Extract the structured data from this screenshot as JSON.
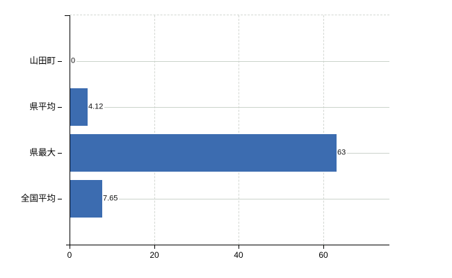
{
  "chart_data": {
    "type": "bar",
    "orientation": "horizontal",
    "title": "",
    "categories": [
      "山田町",
      "県平均",
      "県最大",
      "全国平均"
    ],
    "values": [
      0,
      4.12,
      63,
      7.65
    ],
    "value_labels": [
      "0",
      "4.12",
      "63",
      "7.65"
    ],
    "x_ticks": [
      0,
      20,
      40,
      60
    ],
    "x_tick_labels": [
      "0",
      "20",
      "40",
      "60"
    ],
    "xlim": [
      0,
      75.7
    ],
    "ylabel": "",
    "xlabel": "",
    "grid": true,
    "legend": false,
    "colors": {
      "bar": "#3c6cb0",
      "axis": "#000000",
      "h_gridline": "#cbd3cb",
      "v_gridline": "#d3d7d2",
      "background": "#ffffff",
      "text": "#000000"
    }
  }
}
